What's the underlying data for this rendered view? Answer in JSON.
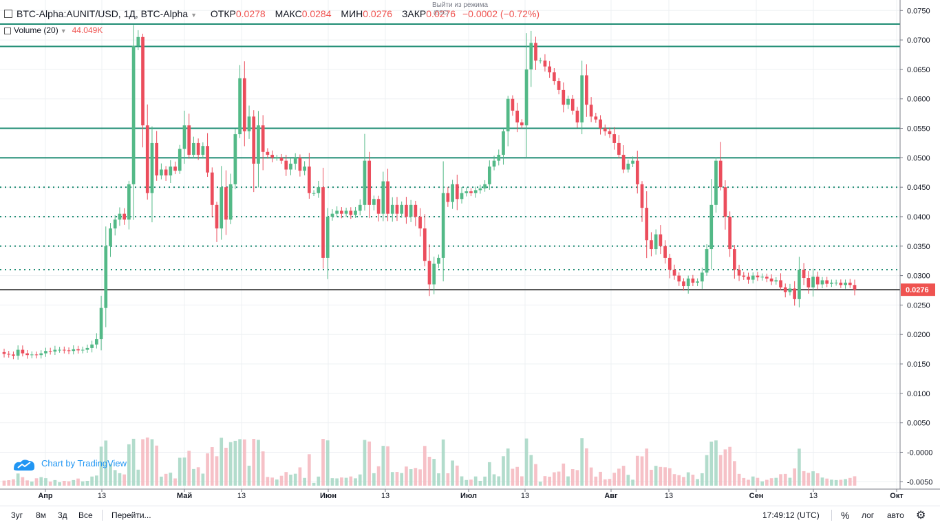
{
  "header": {
    "symbol": "BTC-Alpha:AUNIT/USD, 1Д, BTC-Alpha",
    "open_label": "ОТКР",
    "open_value": "0.0278",
    "high_label": "МАКС",
    "high_value": "0.0284",
    "low_label": "МИН",
    "low_value": "0.0276",
    "close_label": "ЗАКР",
    "close_value": "0.0276",
    "change": "−0.0002 (−0.72%)"
  },
  "volume_indicator": {
    "label": "Volume (20)",
    "value": "44.049K"
  },
  "exit_mode": {
    "label": "Выйти из режима",
    "key": "(ESC)"
  },
  "watermark": {
    "text": "Chart by TradingView"
  },
  "last_price_label": "0.0276",
  "bottom_bar": {
    "ranges": [
      "3уг",
      "8м",
      "3д",
      "Все"
    ],
    "goto": "Перейти...",
    "time": "17:49:12 (UTC)",
    "percent": "%",
    "log": "лог",
    "auto": "авто"
  },
  "colors": {
    "up": "#26a69a",
    "down": "#ef5350",
    "up_candle": "#53b987",
    "down_candle": "#eb4d5c",
    "hline": "#1e8c73"
  },
  "chart_data": {
    "type": "candlestick",
    "title": "BTC-Alpha:AUNIT/USD, 1Д, BTC-Alpha",
    "ylim": [
      -0.0052,
      0.0755
    ],
    "y_ticks": [
      "0.0750",
      "0.0700",
      "0.0650",
      "0.0600",
      "0.0550",
      "0.0500",
      "0.0450",
      "0.0400",
      "0.0350",
      "0.0300",
      "0.0250",
      "0.0200",
      "0.0150",
      "0.0100",
      "0.0050",
      "-0.0000",
      "-0.0050"
    ],
    "x_ticks": [
      "Апр",
      "13",
      "Май",
      "13",
      "Июн",
      "13",
      "Июл",
      "13",
      "Авг",
      "13",
      "Сен",
      "13",
      "Окт"
    ],
    "horizontal_lines_solid": [
      0.0727,
      0.0689,
      0.055,
      0.05
    ],
    "horizontal_lines_dotted": [
      0.045,
      0.04,
      0.035,
      0.031
    ],
    "last_price": 0.0276,
    "close": [
      0.0167,
      0.0166,
      0.0164,
      0.0174,
      0.0168,
      0.0165,
      0.0166,
      0.0165,
      0.0168,
      0.0172,
      0.0171,
      0.0174,
      0.0174,
      0.0173,
      0.0172,
      0.0175,
      0.0173,
      0.0174,
      0.0177,
      0.0183,
      0.0192,
      0.0245,
      0.035,
      0.038,
      0.0395,
      0.0405,
      0.0395,
      0.0455,
      0.069,
      0.0705,
      0.0555,
      0.044,
      0.0525,
      0.047,
      0.048,
      0.047,
      0.0485,
      0.0478,
      0.0515,
      0.0555,
      0.0505,
      0.0525,
      0.0505,
      0.052,
      0.0475,
      0.042,
      0.038,
      0.045,
      0.0395,
      0.0455,
      0.054,
      0.0635,
      0.0545,
      0.057,
      0.049,
      0.0555,
      0.051,
      0.0505,
      0.05,
      0.05,
      0.0495,
      0.048,
      0.049,
      0.05,
      0.0478,
      0.0485,
      0.044,
      0.044,
      0.045,
      0.033,
      0.04,
      0.0405,
      0.041,
      0.0405,
      0.041,
      0.0403,
      0.041,
      0.042,
      0.0495,
      0.042,
      0.043,
      0.0405,
      0.046,
      0.0405,
      0.042,
      0.0405,
      0.042,
      0.04,
      0.042,
      0.04,
      0.038,
      0.0325,
      0.0285,
      0.032,
      0.033,
      0.044,
      0.0425,
      0.0455,
      0.043,
      0.044,
      0.0443,
      0.044,
      0.0445,
      0.0448,
      0.0455,
      0.0485,
      0.0495,
      0.0505,
      0.0545,
      0.06,
      0.058,
      0.056,
      0.0555,
      0.065,
      0.0695,
      0.0665,
      0.0665,
      0.0655,
      0.0645,
      0.063,
      0.0615,
      0.059,
      0.06,
      0.058,
      0.056,
      0.064,
      0.059,
      0.057,
      0.0565,
      0.055,
      0.0545,
      0.054,
      0.0525,
      0.0505,
      0.048,
      0.049,
      0.0495,
      0.0455,
      0.0415,
      0.036,
      0.0345,
      0.037,
      0.035,
      0.033,
      0.031,
      0.03,
      0.029,
      0.0282,
      0.0295,
      0.0288,
      0.029,
      0.0305,
      0.0345,
      0.042,
      0.0495,
      0.045,
      0.04,
      0.0345,
      0.031,
      0.03,
      0.0298,
      0.0293,
      0.03,
      0.0297,
      0.0298,
      0.0295,
      0.029,
      0.0292,
      0.028,
      0.0272,
      0.0278,
      0.026,
      0.031,
      0.0296,
      0.028,
      0.0298,
      0.0285,
      0.0292,
      0.0286,
      0.0288,
      0.0288,
      0.0284,
      0.0288,
      0.0284,
      0.0276
    ],
    "volume_heights_px": []
  }
}
